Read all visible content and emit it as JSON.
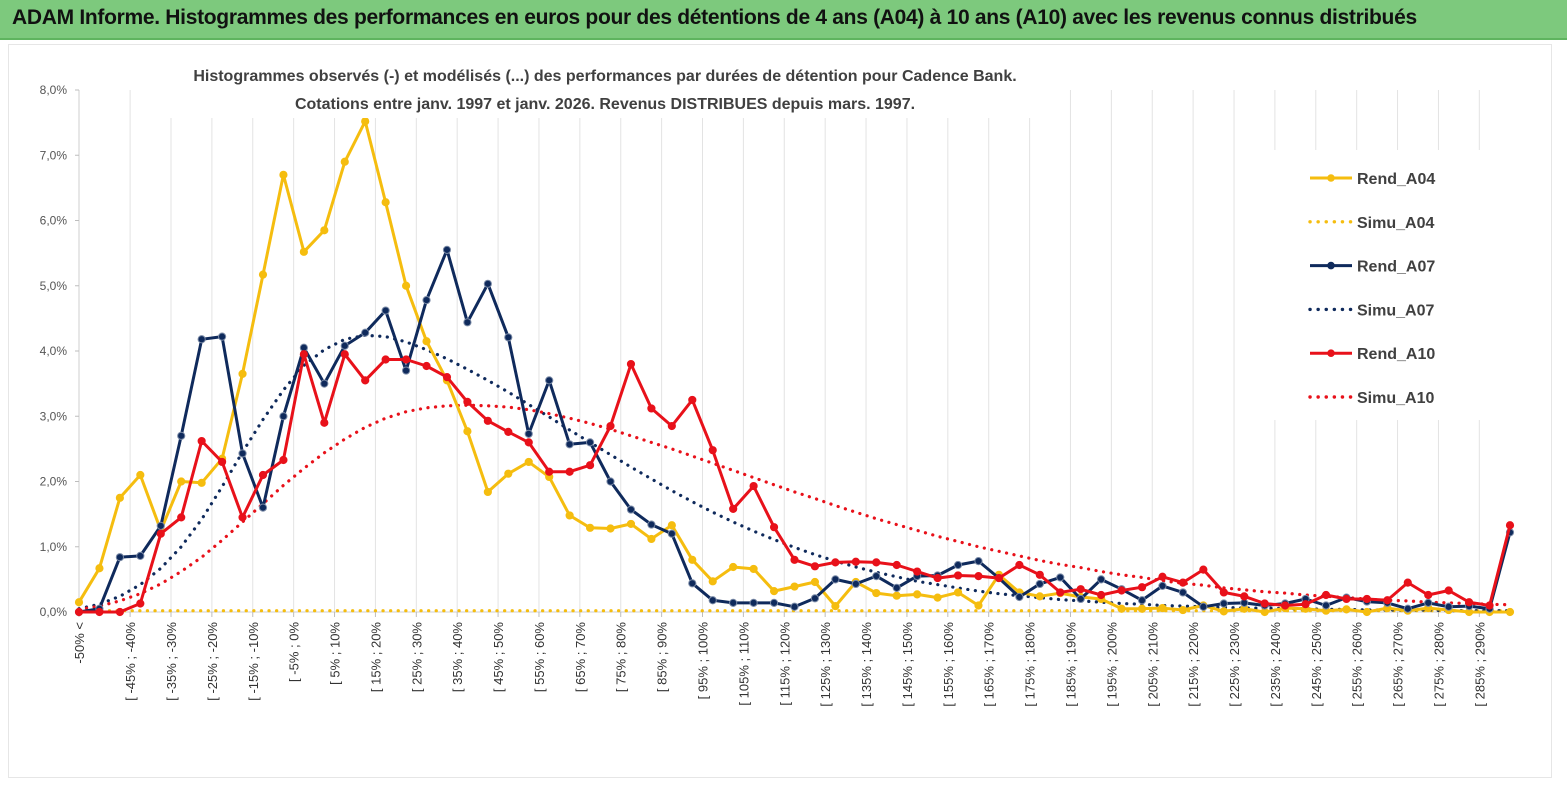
{
  "header": {
    "title": "ADAM Informe. Histogrammes des performances en euros pour des détentions de 4 ans (A04) à 10 ans (A10) avec les revenus connus distribués"
  },
  "chart_data": {
    "type": "line",
    "title_lines": [
      "Histogrammes observés (-) et modélisés (...) des performances par durées de détention pour Cadence Bank.",
      "Cotations entre janv. 1997 et janv. 2026. Revenus DISTRIBUES depuis mars. 1997."
    ],
    "ylim": [
      0,
      8
    ],
    "y_ticks": [
      "0,0%",
      "1,0%",
      "2,0%",
      "3,0%",
      "4,0%",
      "5,0%",
      "6,0%",
      "7,0%",
      "8,0%"
    ],
    "x_tick_labels": [
      "-50% <",
      "[ -45% ; -40%",
      "[ -35% ; -30%",
      "[ -25% ; -20%",
      "[ -15% ; -10%",
      "[ -5% ; 0%",
      "[ 5% ; 10%",
      "[ 15% ; 20%",
      "[ 25% ; 30%",
      "[ 35% ; 40%",
      "[ 45% ; 50%",
      "[ 55% ; 60%",
      "[ 65% ; 70%",
      "[ 75% ; 80%",
      "[ 85% ; 90%",
      "[ 95% ; 100%",
      "[ 105% ; 110%",
      "[ 115% ; 120%",
      "[ 125% ; 130%",
      "[ 135% ; 140%",
      "[ 145% ; 150%",
      "[ 155% ; 160%",
      "[ 165% ; 170%",
      "[ 175% ; 180%",
      "[ 185% ; 190%",
      "[ 195% ; 200%",
      "[ 205% ; 210%",
      "[ 215% ; 220%",
      "[ 225% ; 230%",
      "[ 235% ; 240%",
      "[ 245% ; 250%",
      "[ 255% ; 260%",
      "[ 265% ; 270%",
      "[ 275% ; 280%",
      "[ 285% ; 290%"
    ],
    "num_bins": 71,
    "legend_position": "right",
    "grid": "vertical",
    "series": [
      {
        "name": "Rend_A04",
        "color": "#f5bd0f",
        "style": "solid-markers",
        "values": [
          0.15,
          0.67,
          1.75,
          2.1,
          1.25,
          2.0,
          1.98,
          2.35,
          3.65,
          5.17,
          6.7,
          5.52,
          5.85,
          6.9,
          7.52,
          6.28,
          5.0,
          4.15,
          3.55,
          2.77,
          1.84,
          2.12,
          2.3,
          2.07,
          1.48,
          1.29,
          1.28,
          1.35,
          1.12,
          1.33,
          0.8,
          0.47,
          0.69,
          0.66,
          0.32,
          0.39,
          0.46,
          0.09,
          0.46,
          0.29,
          0.25,
          0.27,
          0.22,
          0.3,
          0.1,
          0.57,
          0.3,
          0.24,
          0.29,
          0.23,
          0.2,
          0.05,
          0.05,
          0.06,
          0.03,
          0.1,
          0.01,
          0.05,
          0.0,
          0.06,
          0.05,
          0.02,
          0.04,
          0.0,
          0.06,
          0.02,
          0.06,
          0.03,
          0.0,
          0.0,
          0.0
        ]
      },
      {
        "name": "Simu_A04",
        "color": "#f5bd0f",
        "style": "dotted",
        "values": [
          0.02,
          0.02,
          0.02,
          0.02,
          0.02,
          0.02,
          0.02,
          0.02,
          0.02,
          0.02,
          0.02,
          0.02,
          0.02,
          0.02,
          0.02,
          0.02,
          0.02,
          0.02,
          0.02,
          0.02,
          0.02,
          0.02,
          0.02,
          0.02,
          0.02,
          0.02,
          0.02,
          0.02,
          0.02,
          0.02,
          0.02,
          0.02,
          0.02,
          0.02,
          0.02,
          0.02,
          0.02,
          0.02,
          0.02,
          0.02,
          0.02,
          0.02,
          0.02,
          0.02,
          0.02,
          0.02,
          0.02,
          0.02,
          0.02,
          0.02,
          0.02,
          0.02,
          0.02,
          0.02,
          0.02,
          0.02,
          0.02,
          0.02,
          0.02,
          0.02,
          0.02,
          0.02,
          0.02,
          0.02,
          0.02,
          0.02,
          0.02,
          0.02,
          0.02,
          0.02,
          0.02
        ]
      },
      {
        "name": "Rend_A07",
        "color": "#0f2a5c",
        "style": "solid-markers",
        "values": [
          0.0,
          0.05,
          0.84,
          0.86,
          1.32,
          2.7,
          4.18,
          4.22,
          2.43,
          1.6,
          3.0,
          4.05,
          3.5,
          4.08,
          4.28,
          4.62,
          3.7,
          4.78,
          5.55,
          4.44,
          5.03,
          4.21,
          2.73,
          3.55,
          2.57,
          2.6,
          2.0,
          1.57,
          1.34,
          1.2,
          0.44,
          0.18,
          0.14,
          0.14,
          0.14,
          0.08,
          0.21,
          0.5,
          0.43,
          0.55,
          0.37,
          0.55,
          0.56,
          0.72,
          0.78,
          0.52,
          0.23,
          0.43,
          0.53,
          0.2,
          0.5,
          0.35,
          0.18,
          0.4,
          0.3,
          0.08,
          0.13,
          0.14,
          0.1,
          0.13,
          0.2,
          0.1,
          0.22,
          0.16,
          0.14,
          0.05,
          0.14,
          0.08,
          0.09,
          0.05,
          1.22
        ]
      },
      {
        "name": "Simu_A07",
        "color": "#0f2a5c",
        "style": "dotted",
        "values": [
          0.05,
          0.12,
          0.24,
          0.42,
          0.67,
          1.0,
          1.42,
          1.92,
          2.45,
          2.95,
          3.4,
          3.78,
          4.02,
          4.18,
          4.24,
          4.22,
          4.14,
          4.02,
          3.88,
          3.72,
          3.55,
          3.37,
          3.18,
          2.99,
          2.79,
          2.6,
          2.41,
          2.22,
          2.04,
          1.86,
          1.69,
          1.53,
          1.38,
          1.24,
          1.11,
          0.99,
          0.88,
          0.78,
          0.69,
          0.61,
          0.54,
          0.47,
          0.42,
          0.37,
          0.32,
          0.28,
          0.25,
          0.22,
          0.19,
          0.17,
          0.15,
          0.13,
          0.12,
          0.1,
          0.09,
          0.08,
          0.07,
          0.06,
          0.06,
          0.05,
          0.05,
          0.04,
          0.04,
          0.03,
          0.03,
          0.03,
          0.03,
          0.02,
          0.02,
          0.02,
          0.02
        ]
      },
      {
        "name": "Rend_A10",
        "color": "#e8111a",
        "style": "solid-markers",
        "values": [
          0.0,
          0.0,
          0.0,
          0.13,
          1.2,
          1.45,
          2.62,
          2.3,
          1.45,
          2.1,
          2.33,
          3.95,
          2.9,
          3.95,
          3.55,
          3.87,
          3.87,
          3.77,
          3.6,
          3.22,
          2.93,
          2.76,
          2.6,
          2.15,
          2.15,
          2.25,
          2.85,
          3.8,
          3.12,
          2.85,
          3.25,
          2.48,
          1.58,
          1.93,
          1.3,
          0.8,
          0.7,
          0.76,
          0.77,
          0.76,
          0.72,
          0.62,
          0.52,
          0.56,
          0.55,
          0.52,
          0.72,
          0.57,
          0.3,
          0.35,
          0.26,
          0.33,
          0.38,
          0.54,
          0.45,
          0.65,
          0.3,
          0.24,
          0.13,
          0.1,
          0.12,
          0.26,
          0.2,
          0.2,
          0.18,
          0.45,
          0.26,
          0.33,
          0.15,
          0.1,
          1.33
        ]
      },
      {
        "name": "Simu_A10",
        "color": "#e8111a",
        "style": "dotted",
        "values": [
          0.04,
          0.09,
          0.17,
          0.28,
          0.43,
          0.62,
          0.84,
          1.1,
          1.38,
          1.66,
          1.94,
          2.2,
          2.44,
          2.65,
          2.83,
          2.97,
          3.07,
          3.13,
          3.16,
          3.17,
          3.16,
          3.14,
          3.1,
          3.04,
          2.97,
          2.89,
          2.8,
          2.7,
          2.6,
          2.5,
          2.39,
          2.28,
          2.17,
          2.06,
          1.95,
          1.84,
          1.74,
          1.63,
          1.53,
          1.43,
          1.34,
          1.25,
          1.16,
          1.08,
          1.0,
          0.93,
          0.86,
          0.79,
          0.73,
          0.68,
          0.62,
          0.57,
          0.53,
          0.48,
          0.44,
          0.41,
          0.37,
          0.34,
          0.31,
          0.29,
          0.26,
          0.24,
          0.22,
          0.2,
          0.18,
          0.17,
          0.15,
          0.14,
          0.13,
          0.12,
          0.11
        ]
      }
    ]
  }
}
